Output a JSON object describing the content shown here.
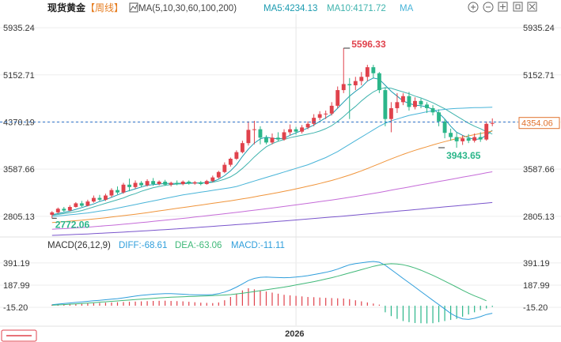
{
  "header": {
    "symbol": "现货黄金",
    "period": "【周线】",
    "ma_label": "MA(5,10,30,60,100,200)",
    "ma5_label": "MA5:4234.13",
    "ma10_label": "MA10:4171.72",
    "ma_extra": "MA"
  },
  "macd_header": {
    "label": "MACD(26,12,9)",
    "diff": "DIFF:-68.61",
    "dea": "DEA:-63.06",
    "macd": "MACD:-11.11"
  },
  "toolbar": [
    "zoom-in-icon",
    "zoom-out-icon",
    "expand-icon",
    "restore-icon",
    "close-icon"
  ],
  "colors": {
    "up": "#e0424c",
    "down": "#2bb68a",
    "ma5": "#1b9bb0",
    "ma10": "#3fb3ad",
    "ma30": "#48b4d8",
    "ma60": "#f0943a",
    "ma100": "#c56bd8",
    "ma200": "#7a55cc",
    "current_price_line": "#2e72c8",
    "diff": "#2f9edb",
    "dea": "#3fb878"
  },
  "chart_data": {
    "type": "candlestick",
    "title": "现货黄金 周线",
    "y_ticks": [
      "5935.24",
      "5152.71",
      "4370.19",
      "3587.66",
      "2805.13"
    ],
    "ylim": [
      2488,
      6160
    ],
    "current_price": "4354.06",
    "current_price_ref": "4370.19",
    "annotations": {
      "high": "5596.33",
      "recent_low": "3943.65",
      "left_low": "2772.06"
    },
    "x_labels": [
      "2026"
    ],
    "candles": [
      {
        "o": 2830,
        "c": 2870,
        "h": 2890,
        "l": 2772
      },
      {
        "o": 2870,
        "c": 2930,
        "h": 2950,
        "l": 2850
      },
      {
        "o": 2930,
        "c": 2900,
        "h": 2960,
        "l": 2880
      },
      {
        "o": 2900,
        "c": 2960,
        "h": 2990,
        "l": 2890
      },
      {
        "o": 2960,
        "c": 3020,
        "h": 3040,
        "l": 2950
      },
      {
        "o": 3020,
        "c": 2980,
        "h": 3060,
        "l": 2960
      },
      {
        "o": 2980,
        "c": 3050,
        "h": 3080,
        "l": 2970
      },
      {
        "o": 3050,
        "c": 3110,
        "h": 3150,
        "l": 3030
      },
      {
        "o": 3110,
        "c": 3080,
        "h": 3160,
        "l": 3060
      },
      {
        "o": 3080,
        "c": 3150,
        "h": 3180,
        "l": 3060
      },
      {
        "o": 3150,
        "c": 3240,
        "h": 3270,
        "l": 3120
      },
      {
        "o": 3240,
        "c": 3200,
        "h": 3300,
        "l": 3170
      },
      {
        "o": 3200,
        "c": 3330,
        "h": 3360,
        "l": 3180
      },
      {
        "o": 3330,
        "c": 3290,
        "h": 3430,
        "l": 3220
      },
      {
        "o": 3290,
        "c": 3360,
        "h": 3400,
        "l": 3260
      },
      {
        "o": 3360,
        "c": 3320,
        "h": 3390,
        "l": 3290
      },
      {
        "o": 3320,
        "c": 3390,
        "h": 3420,
        "l": 3300
      },
      {
        "o": 3390,
        "c": 3340,
        "h": 3440,
        "l": 3310
      },
      {
        "o": 3340,
        "c": 3380,
        "h": 3400,
        "l": 3320
      },
      {
        "o": 3380,
        "c": 3330,
        "h": 3410,
        "l": 3310
      },
      {
        "o": 3330,
        "c": 3360,
        "h": 3380,
        "l": 3300
      },
      {
        "o": 3360,
        "c": 3340,
        "h": 3400,
        "l": 3320
      },
      {
        "o": 3340,
        "c": 3380,
        "h": 3400,
        "l": 3320
      },
      {
        "o": 3380,
        "c": 3350,
        "h": 3400,
        "l": 3330
      },
      {
        "o": 3350,
        "c": 3370,
        "h": 3390,
        "l": 3330
      },
      {
        "o": 3370,
        "c": 3340,
        "h": 3390,
        "l": 3320
      },
      {
        "o": 3340,
        "c": 3390,
        "h": 3410,
        "l": 3330
      },
      {
        "o": 3390,
        "c": 3450,
        "h": 3480,
        "l": 3370
      },
      {
        "o": 3450,
        "c": 3540,
        "h": 3560,
        "l": 3430
      },
      {
        "o": 3540,
        "c": 3660,
        "h": 3700,
        "l": 3520
      },
      {
        "o": 3660,
        "c": 3760,
        "h": 3780,
        "l": 3630
      },
      {
        "o": 3760,
        "c": 3870,
        "h": 3900,
        "l": 3740
      },
      {
        "o": 3870,
        "c": 4020,
        "h": 4060,
        "l": 3850
      },
      {
        "o": 4020,
        "c": 4240,
        "h": 4380,
        "l": 3980
      },
      {
        "o": 4240,
        "c": 4250,
        "h": 4390,
        "l": 4000
      },
      {
        "o": 4250,
        "c": 4110,
        "h": 4300,
        "l": 4000
      },
      {
        "o": 4110,
        "c": 4030,
        "h": 4150,
        "l": 4000
      },
      {
        "o": 4030,
        "c": 4110,
        "h": 4180,
        "l": 4000
      },
      {
        "o": 4110,
        "c": 4080,
        "h": 4200,
        "l": 4050
      },
      {
        "o": 4080,
        "c": 4200,
        "h": 4250,
        "l": 4060
      },
      {
        "o": 4200,
        "c": 4250,
        "h": 4330,
        "l": 4150
      },
      {
        "o": 4250,
        "c": 4210,
        "h": 4290,
        "l": 4160
      },
      {
        "o": 4210,
        "c": 4280,
        "h": 4320,
        "l": 4180
      },
      {
        "o": 4280,
        "c": 4340,
        "h": 4380,
        "l": 4250
      },
      {
        "o": 4340,
        "c": 4440,
        "h": 4500,
        "l": 4300
      },
      {
        "o": 4440,
        "c": 4500,
        "h": 4550,
        "l": 4400
      },
      {
        "o": 4500,
        "c": 4510,
        "h": 4560,
        "l": 4420
      },
      {
        "o": 4510,
        "c": 4640,
        "h": 4700,
        "l": 4480
      },
      {
        "o": 4640,
        "c": 4900,
        "h": 4960,
        "l": 4600
      },
      {
        "o": 4900,
        "c": 5000,
        "h": 5596,
        "l": 4850
      },
      {
        "o": 5000,
        "c": 4980,
        "h": 5100,
        "l": 4420
      },
      {
        "o": 4980,
        "c": 5050,
        "h": 5120,
        "l": 4900
      },
      {
        "o": 5050,
        "c": 5120,
        "h": 5200,
        "l": 4980
      },
      {
        "o": 5120,
        "c": 5280,
        "h": 5320,
        "l": 5050
      },
      {
        "o": 5280,
        "c": 5180,
        "h": 5320,
        "l": 5100
      },
      {
        "o": 5180,
        "c": 4900,
        "h": 5200,
        "l": 4850
      },
      {
        "o": 4900,
        "c": 4420,
        "h": 4950,
        "l": 4300
      },
      {
        "o": 4420,
        "c": 4600,
        "h": 4700,
        "l": 4200
      },
      {
        "o": 4600,
        "c": 4700,
        "h": 4850,
        "l": 4520
      },
      {
        "o": 4700,
        "c": 4800,
        "h": 4850,
        "l": 4650
      },
      {
        "o": 4800,
        "c": 4620,
        "h": 4870,
        "l": 4560
      },
      {
        "o": 4620,
        "c": 4720,
        "h": 4780,
        "l": 4580
      },
      {
        "o": 4720,
        "c": 4660,
        "h": 4760,
        "l": 4600
      },
      {
        "o": 4660,
        "c": 4600,
        "h": 4700,
        "l": 4520
      },
      {
        "o": 4600,
        "c": 4530,
        "h": 4650,
        "l": 4480
      },
      {
        "o": 4530,
        "c": 4380,
        "h": 4580,
        "l": 4300
      },
      {
        "o": 4380,
        "c": 4190,
        "h": 4420,
        "l": 4100
      },
      {
        "o": 4190,
        "c": 4120,
        "h": 4260,
        "l": 4060
      },
      {
        "o": 4120,
        "c": 4050,
        "h": 4200,
        "l": 3943
      },
      {
        "o": 4050,
        "c": 4100,
        "h": 4150,
        "l": 3990
      },
      {
        "o": 4100,
        "c": 4060,
        "h": 4170,
        "l": 4020
      },
      {
        "o": 4060,
        "c": 4120,
        "h": 4180,
        "l": 4030
      },
      {
        "o": 4120,
        "c": 4080,
        "h": 4200,
        "l": 4040
      },
      {
        "o": 4080,
        "c": 4340,
        "h": 4380,
        "l": 4060
      },
      {
        "o": 4340,
        "c": 4354,
        "h": 4430,
        "l": 4300
      }
    ],
    "ma_series": [
      {
        "name": "MA5",
        "color": "#1b9bb0",
        "values": [
          2830,
          2850,
          2870,
          2890,
          2920,
          2950,
          2980,
          3010,
          3050,
          3080,
          3120,
          3160,
          3200,
          3230,
          3260,
          3290,
          3320,
          3330,
          3340,
          3350,
          3350,
          3350,
          3355,
          3360,
          3360,
          3360,
          3365,
          3380,
          3420,
          3480,
          3560,
          3660,
          3800,
          3920,
          4020,
          4090,
          4120,
          4100,
          4090,
          4100,
          4150,
          4190,
          4230,
          4270,
          4320,
          4380,
          4440,
          4500,
          4600,
          4700,
          4800,
          4880,
          4950,
          5050,
          5100,
          5080,
          4980,
          4880,
          4800,
          4720,
          4680,
          4650,
          4640,
          4620,
          4580,
          4520,
          4420,
          4300,
          4200,
          4150,
          4110,
          4080,
          4090,
          4150,
          4234
        ]
      },
      {
        "name": "MA10",
        "color": "#3fb3ad",
        "values": [
          2820,
          2835,
          2850,
          2865,
          2880,
          2900,
          2930,
          2960,
          2990,
          3020,
          3050,
          3080,
          3110,
          3150,
          3180,
          3220,
          3250,
          3280,
          3300,
          3320,
          3330,
          3340,
          3345,
          3350,
          3355,
          3355,
          3360,
          3370,
          3390,
          3420,
          3460,
          3520,
          3600,
          3690,
          3790,
          3880,
          3960,
          4010,
          4050,
          4080,
          4110,
          4130,
          4150,
          4170,
          4190,
          4220,
          4260,
          4310,
          4380,
          4460,
          4550,
          4630,
          4720,
          4800,
          4870,
          4920,
          4940,
          4930,
          4900,
          4870,
          4840,
          4800,
          4770,
          4730,
          4690,
          4640,
          4590,
          4530,
          4470,
          4410,
          4350,
          4300,
          4260,
          4210,
          4171
        ]
      },
      {
        "name": "MA30",
        "color": "#48b4d8",
        "values": [
          2800,
          2810,
          2820,
          2830,
          2840,
          2850,
          2860,
          2875,
          2890,
          2905,
          2920,
          2940,
          2960,
          2980,
          3000,
          3020,
          3040,
          3060,
          3080,
          3100,
          3120,
          3140,
          3160,
          3175,
          3190,
          3205,
          3220,
          3235,
          3250,
          3265,
          3280,
          3300,
          3330,
          3360,
          3390,
          3420,
          3450,
          3480,
          3510,
          3540,
          3570,
          3600,
          3630,
          3660,
          3700,
          3740,
          3780,
          3830,
          3880,
          3940,
          4000,
          4060,
          4120,
          4180,
          4240,
          4300,
          4350,
          4390,
          4420,
          4450,
          4480,
          4500,
          4520,
          4540,
          4555,
          4570,
          4580,
          4590,
          4595,
          4600,
          4605,
          4608,
          4610,
          4612,
          4615
        ]
      },
      {
        "name": "MA60",
        "color": "#f0943a",
        "values": [
          2700,
          2708,
          2716,
          2724,
          2732,
          2740,
          2750,
          2760,
          2770,
          2780,
          2792,
          2804,
          2816,
          2828,
          2840,
          2852,
          2866,
          2880,
          2894,
          2908,
          2922,
          2936,
          2950,
          2964,
          2978,
          2992,
          3006,
          3020,
          3034,
          3048,
          3062,
          3078,
          3094,
          3110,
          3128,
          3146,
          3164,
          3182,
          3200,
          3220,
          3240,
          3260,
          3282,
          3304,
          3326,
          3350,
          3374,
          3400,
          3428,
          3458,
          3490,
          3524,
          3560,
          3598,
          3638,
          3678,
          3718,
          3758,
          3796,
          3832,
          3868,
          3900,
          3930,
          3960,
          3990,
          4018,
          4045,
          4070,
          4095,
          4118,
          4140,
          4160,
          4180,
          4200,
          4220
        ]
      },
      {
        "name": "MA100",
        "color": "#c56bd8",
        "values": [
          2590,
          2595,
          2600,
          2606,
          2612,
          2618,
          2625,
          2632,
          2640,
          2648,
          2656,
          2664,
          2673,
          2682,
          2691,
          2700,
          2710,
          2720,
          2730,
          2740,
          2750,
          2760,
          2770,
          2781,
          2792,
          2803,
          2814,
          2825,
          2836,
          2847,
          2858,
          2870,
          2882,
          2894,
          2906,
          2918,
          2930,
          2942,
          2955,
          2968,
          2981,
          2994,
          3007,
          3020,
          3034,
          3048,
          3062,
          3076,
          3090,
          3105,
          3120,
          3136,
          3152,
          3168,
          3185,
          3202,
          3220,
          3238,
          3256,
          3274,
          3292,
          3310,
          3328,
          3346,
          3364,
          3382,
          3400,
          3418,
          3436,
          3454,
          3472,
          3490,
          3508,
          3526,
          3544
        ]
      },
      {
        "name": "MA200",
        "color": "#7a55cc",
        "values": [
          2488,
          2492,
          2496,
          2500,
          2504,
          2508,
          2512,
          2517,
          2522,
          2527,
          2532,
          2537,
          2542,
          2548,
          2554,
          2560,
          2566,
          2572,
          2578,
          2584,
          2590,
          2596,
          2603,
          2610,
          2617,
          2624,
          2631,
          2638,
          2645,
          2652,
          2659,
          2666,
          2673,
          2680,
          2688,
          2696,
          2704,
          2712,
          2720,
          2728,
          2736,
          2744,
          2752,
          2760,
          2768,
          2776,
          2784,
          2792,
          2800,
          2808,
          2817,
          2826,
          2835,
          2844,
          2853,
          2862,
          2871,
          2880,
          2889,
          2898,
          2907,
          2916,
          2925,
          2934,
          2943,
          2952,
          2961,
          2970,
          2979,
          2988,
          2997,
          3006,
          3015,
          3024,
          3033
        ]
      }
    ],
    "macd": {
      "y_ticks": [
        "391.19",
        "187.99",
        "-15.20"
      ],
      "ylim": [
        -180,
        470
      ],
      "diff": [
        10,
        15,
        20,
        25,
        30,
        35,
        40,
        45,
        50,
        55,
        60,
        65,
        72,
        80,
        88,
        95,
        100,
        105,
        108,
        110,
        110,
        108,
        105,
        102,
        100,
        100,
        100,
        102,
        110,
        125,
        145,
        170,
        200,
        230,
        250,
        260,
        262,
        260,
        258,
        256,
        258,
        262,
        268,
        275,
        285,
        295,
        305,
        318,
        335,
        355,
        375,
        385,
        392,
        400,
        405,
        398,
        370,
        330,
        290,
        250,
        210,
        170,
        130,
        90,
        50,
        10,
        -30,
        -70,
        -100,
        -120,
        -125,
        -115,
        -100,
        -80,
        -69
      ],
      "dea": [
        5,
        8,
        11,
        14,
        17,
        20,
        24,
        28,
        32,
        36,
        40,
        44,
        48,
        52,
        56,
        60,
        64,
        68,
        72,
        75,
        78,
        80,
        82,
        84,
        86,
        88,
        90,
        92,
        95,
        98,
        102,
        108,
        115,
        122,
        130,
        138,
        146,
        154,
        162,
        170,
        180,
        190,
        200,
        210,
        220,
        232,
        244,
        256,
        270,
        285,
        300,
        315,
        330,
        345,
        360,
        372,
        380,
        384,
        382,
        375,
        362,
        345,
        325,
        302,
        278,
        252,
        225,
        198,
        170,
        142,
        115,
        90,
        70,
        45,
        -63
      ],
      "hist": [
        10,
        12,
        14,
        16,
        18,
        20,
        22,
        24,
        26,
        28,
        30,
        32,
        34,
        36,
        38,
        40,
        42,
        44,
        45,
        46,
        44,
        42,
        40,
        36,
        32,
        28,
        26,
        24,
        30,
        50,
        80,
        110,
        140,
        160,
        150,
        140,
        130,
        120,
        110,
        100,
        95,
        90,
        85,
        80,
        78,
        75,
        72,
        70,
        68,
        66,
        60,
        50,
        40,
        30,
        20,
        10,
        -60,
        -95,
        -120,
        -140,
        -150,
        -158,
        -160,
        -162,
        -160,
        -150,
        -140,
        -130,
        -120,
        -100,
        -80,
        -60,
        -40,
        -25,
        -11
      ]
    }
  }
}
